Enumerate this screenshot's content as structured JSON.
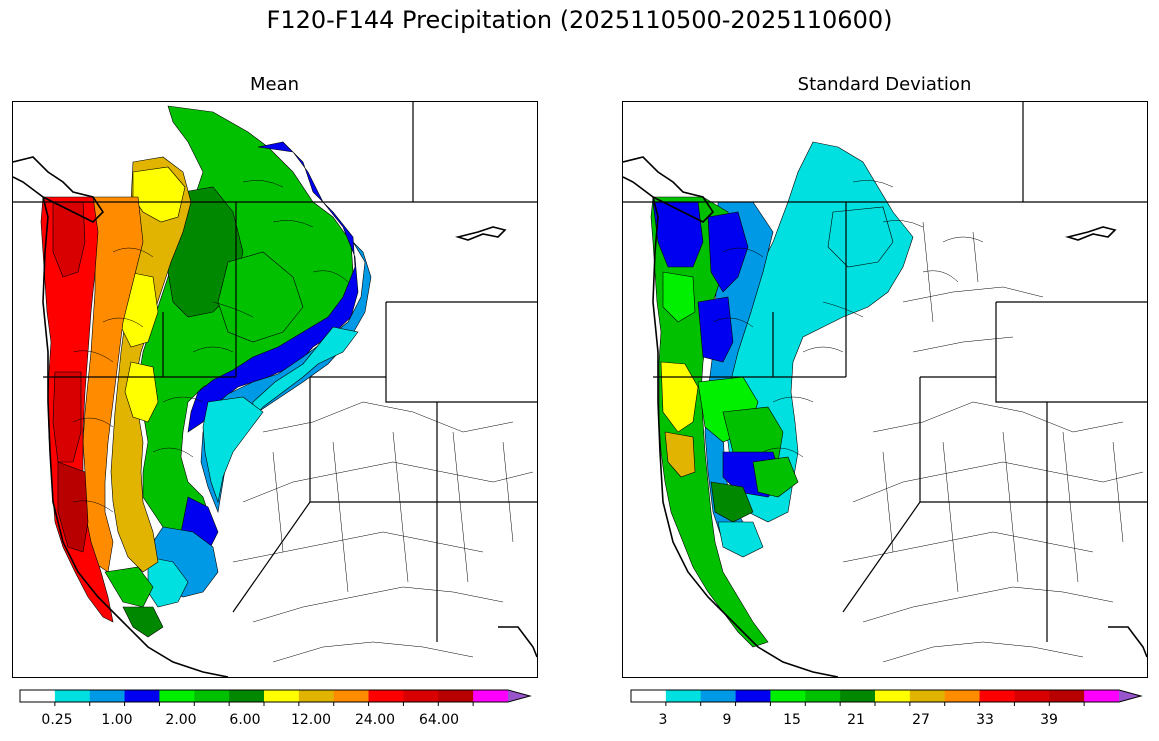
{
  "figure": {
    "title": "F120-F144 Precipitation (2025110500-2025110600)"
  },
  "panels": [
    {
      "title": "Mean",
      "colorbar": {
        "colors": [
          "#ffffff",
          "#00e0e0",
          "#0099e6",
          "#0000f0",
          "#00f000",
          "#00c000",
          "#008800",
          "#ffff00",
          "#e0b400",
          "#ff8c00",
          "#ff0000",
          "#d80000",
          "#b80000",
          "#ff00ff",
          "#9955cc"
        ],
        "tick_labels": [
          "0.25",
          "1.00",
          "2.00",
          "6.00",
          "12.00",
          "24.00",
          "64.00"
        ],
        "extend": "max"
      }
    },
    {
      "title": "Standard Deviation",
      "colorbar": {
        "colors": [
          "#ffffff",
          "#00e0e0",
          "#0099e6",
          "#0000f0",
          "#00f000",
          "#00c000",
          "#008800",
          "#ffff00",
          "#e0b400",
          "#ff8c00",
          "#ff0000",
          "#d80000",
          "#b80000",
          "#ff00ff",
          "#9955cc"
        ],
        "tick_labels": [
          "3",
          "9",
          "15",
          "21",
          "27",
          "33",
          "39"
        ],
        "extend": "max"
      }
    }
  ]
}
